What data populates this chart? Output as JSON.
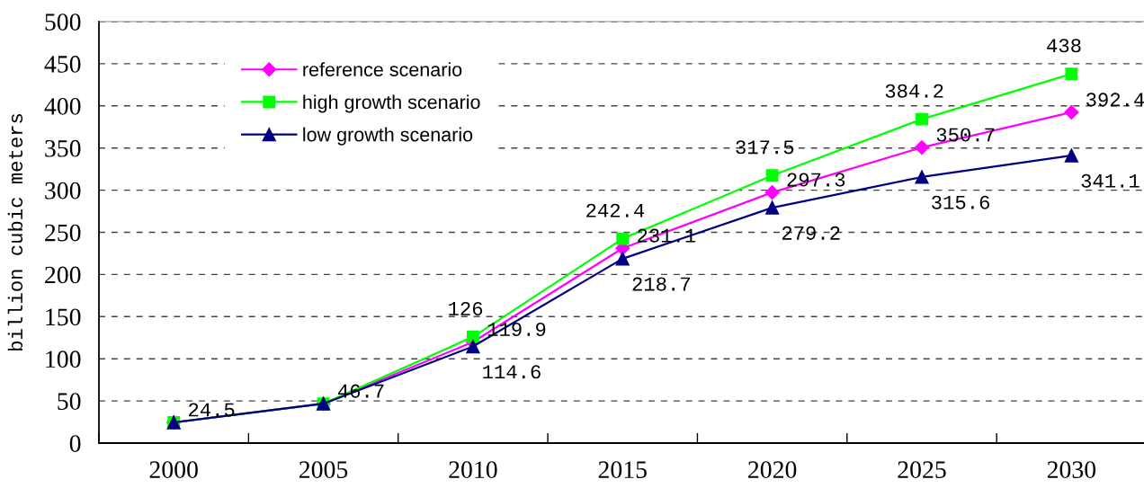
{
  "chart_data": {
    "type": "line",
    "ylabel": "billion cubic meters",
    "categories": [
      "2000",
      "2005",
      "2010",
      "2015",
      "2020",
      "2025",
      "2030"
    ],
    "series": [
      {
        "name": "reference scenario",
        "color": "#ff00ff",
        "marker": "diamond",
        "values": [
          24.5,
          46.7,
          119.9,
          231.1,
          297.3,
          350.7,
          392.4
        ],
        "value_labels": [
          "24.5",
          "46.7",
          "119.9",
          "231.1",
          "297.3",
          "350.7",
          "392.4"
        ]
      },
      {
        "name": "high growth scenario",
        "color": "#00ff00",
        "marker": "square",
        "values": [
          24.5,
          46.7,
          126,
          242.4,
          317.5,
          384.2,
          438
        ],
        "value_labels": [
          null,
          null,
          "126",
          "242.4",
          "317.5",
          "384.2",
          "438"
        ]
      },
      {
        "name": "low growth scenario",
        "color": "#000080",
        "marker": "triangle",
        "values": [
          24.5,
          46.7,
          114.6,
          218.7,
          279.2,
          315.6,
          341.1
        ],
        "value_labels": [
          null,
          null,
          "114.6",
          "218.7",
          "279.2",
          "315.6",
          "341.1"
        ]
      }
    ],
    "ylim": [
      0,
      500
    ],
    "yticks": [
      0,
      50,
      100,
      150,
      200,
      250,
      300,
      350,
      400,
      450,
      500
    ],
    "grid": "y",
    "legend": "top left",
    "line_style": "solid"
  }
}
